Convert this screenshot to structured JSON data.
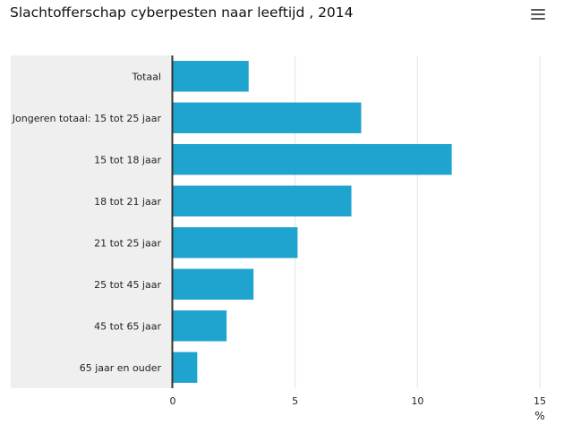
{
  "title": "Slachtofferschap cyberpesten naar leeftijd , 2014",
  "menu_icon": "hamburger-menu-icon",
  "colors": {
    "bar": "#1fa3cf",
    "grid": "#e3e3e3",
    "label_panel": "#efefef",
    "axis": "#333333"
  },
  "chart_data": {
    "type": "bar",
    "orientation": "horizontal",
    "title": "Slachtofferschap cyberpesten naar leeftijd , 2014",
    "categories": [
      "Totaal",
      "Jongeren totaal: 15 tot 25 jaar",
      "15 tot 18 jaar",
      "18 tot 21 jaar",
      "21 tot 25 jaar",
      "25 tot 45 jaar",
      "45 tot 65 jaar",
      "65 jaar en ouder"
    ],
    "values": [
      3.1,
      7.7,
      11.4,
      7.3,
      5.1,
      3.3,
      2.2,
      1.0
    ],
    "xlabel": "%",
    "xlim": [
      0,
      15
    ],
    "xticks": [
      0,
      5,
      10,
      15
    ],
    "grid": true
  }
}
